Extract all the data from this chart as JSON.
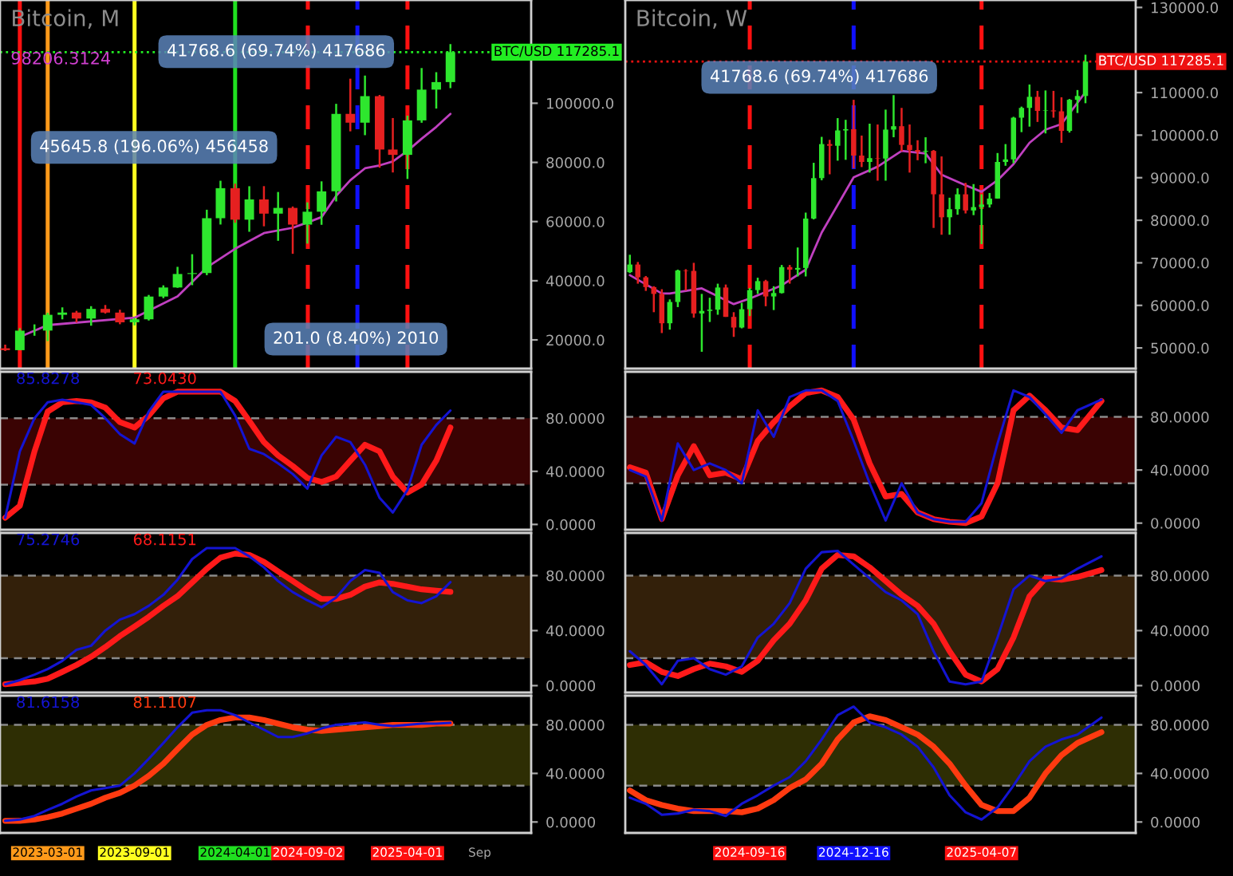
{
  "chart_data": [
    {
      "type": "candlestick",
      "title": "Bitcoin, M",
      "x": [
        "2022-12",
        "2023-01",
        "2023-02",
        "2023-03",
        "2023-04",
        "2023-05",
        "2023-06",
        "2023-07",
        "2023-08",
        "2023-09",
        "2023-10",
        "2023-11",
        "2023-12",
        "2024-01",
        "2024-02",
        "2024-03",
        "2024-04",
        "2024-05",
        "2024-06",
        "2024-07",
        "2024-08",
        "2024-09",
        "2024-10",
        "2024-11",
        "2024-12",
        "2025-01",
        "2025-02",
        "2025-03",
        "2025-04",
        "2025-05",
        "2025-06",
        "2025-07"
      ],
      "ohlc": [
        [
          17170,
          18400,
          16250,
          16530
        ],
        [
          16530,
          23950,
          16500,
          23125
        ],
        [
          23125,
          25250,
          21400,
          23150
        ],
        [
          23150,
          29200,
          19600,
          28480
        ],
        [
          28480,
          31000,
          26950,
          29250
        ],
        [
          29250,
          29820,
          25880,
          27220
        ],
        [
          27220,
          31400,
          24800,
          30480
        ],
        [
          30480,
          31800,
          28900,
          29230
        ],
        [
          29230,
          30200,
          25300,
          25940
        ],
        [
          25940,
          27450,
          24900,
          26960
        ],
        [
          26960,
          35200,
          26550,
          34650
        ],
        [
          34650,
          38450,
          34100,
          37720
        ],
        [
          37720,
          44700,
          37600,
          42280
        ],
        [
          42280,
          48970,
          38500,
          42580
        ],
        [
          42580,
          64000,
          41880,
          61130
        ],
        [
          61130,
          73800,
          59000,
          71290
        ],
        [
          71290,
          72800,
          59600,
          60640
        ],
        [
          60640,
          71950,
          56550,
          67490
        ],
        [
          67490,
          71980,
          58400,
          62680
        ],
        [
          62680,
          70000,
          53500,
          64620
        ],
        [
          64620,
          65100,
          49100,
          58970
        ],
        [
          58970,
          66500,
          52550,
          63330
        ],
        [
          63330,
          73600,
          58900,
          70220
        ],
        [
          70220,
          99800,
          66800,
          96410
        ],
        [
          96410,
          108300,
          90500,
          93430
        ],
        [
          93430,
          109350,
          89200,
          102400
        ],
        [
          102400,
          102800,
          78200,
          84350
        ],
        [
          84350,
          95000,
          76600,
          82550
        ],
        [
          82550,
          95800,
          74400,
          94200
        ],
        [
          94200,
          111900,
          93400,
          104600
        ],
        [
          104600,
          110500,
          98200,
          107150
        ],
        [
          107150,
          120000,
          105100,
          117285.1
        ]
      ],
      "colors": [
        "#e62020",
        "#2ee62e",
        "#2ee62e",
        "#2ee62e",
        "#2ee62e",
        "#e62020",
        "#2ee62e",
        "#e62020",
        "#e62020",
        "#2ee62e",
        "#2ee62e",
        "#2ee62e",
        "#2ee62e",
        "#2ee62e",
        "#2ee62e",
        "#2ee62e",
        "#e62020",
        "#2ee62e",
        "#e62020",
        "#2ee62e",
        "#e62020",
        "#2ee62e",
        "#2ee62e",
        "#2ee62e",
        "#e62020",
        "#2ee62e",
        "#e62020",
        "#e62020",
        "#2ee62e",
        "#2ee62e",
        "#2ee62e",
        "#2ee62e"
      ],
      "series": [
        {
          "type": "line",
          "color": "#c040c0",
          "x": [
            "2023-01",
            "2023-03",
            "2023-09",
            "2023-12",
            "2024-02",
            "2024-04",
            "2024-06",
            "2024-08",
            "2024-09",
            "2024-10",
            "2024-11",
            "2024-12",
            "2025-01",
            "2025-02",
            "2025-03",
            "2025-04",
            "2025-05",
            "2025-06",
            "2025-07"
          ],
          "values": [
            21000,
            25000,
            27500,
            34700,
            44500,
            50800,
            56100,
            57900,
            59700,
            61500,
            68700,
            74000,
            78000,
            79000,
            80300,
            83900,
            88000,
            92000,
            96400
          ]
        }
      ],
      "xlim": [
        "2022-11-20",
        "2025-12-19"
      ],
      "ylim": [
        10300,
        134900
      ],
      "yticks": [
        {
          "value": 20000,
          "label": "20000.0"
        },
        {
          "value": 40000,
          "label": "40000.0"
        },
        {
          "value": 60000,
          "label": "60000.0"
        },
        {
          "value": 80000,
          "label": "80000.0"
        },
        {
          "value": 100000,
          "label": "100000.0"
        }
      ],
      "tick_labels": "y",
      "ref_lines": [
        {
          "axis": "x",
          "value": "2023-01-01",
          "color": "#ff1010",
          "line_style": "solid"
        },
        {
          "axis": "x",
          "value": "2023-03-01",
          "color": "#ff9a1a",
          "line_style": "solid"
        },
        {
          "axis": "x",
          "value": "2023-09-01",
          "color": "#ffff20",
          "line_style": "solid"
        },
        {
          "axis": "x",
          "value": "2024-04-01",
          "color": "#20e020",
          "line_style": "solid"
        },
        {
          "axis": "x",
          "value": "2024-09-02",
          "color": "#ff1010",
          "line_style": "dashed"
        },
        {
          "axis": "x",
          "value": "2024-12-16",
          "color": "#1010ff",
          "line_style": "dashed"
        },
        {
          "axis": "x",
          "value": "2025-04-01",
          "color": "#ff1010",
          "line_style": "dashed"
        },
        {
          "axis": "y",
          "value": 117285.1,
          "label": "BTC/USD 117285.1",
          "color": "#22ee22",
          "line_style": "dotted"
        }
      ],
      "annotations": [
        "98206.3124",
        "45645.8 (196.06%) 456458",
        "41768.6 (69.74%) 417686",
        "201.0 (8.40%) 2010"
      ]
    },
    {
      "type": "candlestick",
      "title": "Bitcoin, W",
      "x": [
        "2024-06-03",
        "2024-06-10",
        "2024-06-17",
        "2024-06-24",
        "2024-07-01",
        "2024-07-08",
        "2024-07-15",
        "2024-07-22",
        "2024-07-29",
        "2024-08-05",
        "2024-08-12",
        "2024-08-19",
        "2024-08-26",
        "2024-09-02",
        "2024-09-09",
        "2024-09-16",
        "2024-09-23",
        "2024-09-30",
        "2024-10-07",
        "2024-10-14",
        "2024-10-21",
        "2024-10-28",
        "2024-11-04",
        "2024-11-11",
        "2024-11-18",
        "2024-11-25",
        "2024-12-02",
        "2024-12-09",
        "2024-12-16",
        "2024-12-23",
        "2024-12-30",
        "2025-01-06",
        "2025-01-13",
        "2025-01-20",
        "2025-01-27",
        "2025-02-03",
        "2025-02-10",
        "2025-02-17",
        "2025-02-24",
        "2025-03-03",
        "2025-03-10",
        "2025-03-17",
        "2025-03-24",
        "2025-03-31",
        "2025-04-07",
        "2025-04-14",
        "2025-04-21",
        "2025-04-28",
        "2025-05-05",
        "2025-05-12",
        "2025-05-19",
        "2025-05-26",
        "2025-06-02",
        "2025-06-09",
        "2025-06-16",
        "2025-06-23",
        "2025-06-30",
        "2025-07-07"
      ],
      "ohlc": [
        [
          67800,
          71900,
          67600,
          69600
        ],
        [
          69600,
          70200,
          65100,
          66600
        ],
        [
          66600,
          66900,
          63400,
          64300
        ],
        [
          64300,
          64500,
          58400,
          62700
        ],
        [
          62700,
          63800,
          53500,
          55800
        ],
        [
          55800,
          61400,
          54300,
          60800
        ],
        [
          60800,
          68400,
          59600,
          68200
        ],
        [
          68200,
          68500,
          63500,
          68100
        ],
        [
          68100,
          70000,
          57100,
          58100
        ],
        [
          58100,
          62700,
          49100,
          58700
        ],
        [
          58700,
          61800,
          56100,
          59000
        ],
        [
          59000,
          65100,
          57800,
          64200
        ],
        [
          64200,
          64900,
          57300,
          57300
        ],
        [
          57300,
          58400,
          52600,
          54800
        ],
        [
          54800,
          60600,
          54600,
          59100
        ],
        [
          59100,
          64100,
          57500,
          63600
        ],
        [
          63600,
          66500,
          62700,
          65700
        ],
        [
          65700,
          66000,
          59800,
          62100
        ],
        [
          62100,
          64500,
          58900,
          62900
        ],
        [
          62900,
          69500,
          62800,
          69000
        ],
        [
          69000,
          69500,
          65100,
          68400
        ],
        [
          68400,
          73600,
          66800,
          68800
        ],
        [
          68800,
          81800,
          66800,
          80400
        ],
        [
          80400,
          93500,
          80200,
          89900
        ],
        [
          89900,
          99600,
          89400,
          97900
        ],
        [
          97900,
          98900,
          90800,
          97500
        ],
        [
          97500,
          104000,
          94000,
          101100
        ],
        [
          101100,
          103600,
          94200,
          101400
        ],
        [
          101400,
          108300,
          92200,
          95200
        ],
        [
          95200,
          99900,
          92500,
          93700
        ],
        [
          93700,
          102700,
          91200,
          94600
        ],
        [
          94600,
          102500,
          89300,
          94500
        ],
        [
          94500,
          106000,
          89300,
          101300
        ],
        [
          101300,
          109400,
          99500,
          102100
        ],
        [
          102100,
          106400,
          96200,
          97700
        ],
        [
          97700,
          102500,
          91200,
          96500
        ],
        [
          96500,
          98800,
          94100,
          96100
        ],
        [
          96100,
          99500,
          93400,
          96300
        ],
        [
          96300,
          96500,
          78200,
          86100
        ],
        [
          86100,
          95000,
          76600,
          80700
        ],
        [
          80700,
          85300,
          76600,
          82600
        ],
        [
          82600,
          87500,
          81300,
          86100
        ],
        [
          86100,
          88800,
          81600,
          82300
        ],
        [
          82300,
          88500,
          81200,
          83100
        ],
        [
          83100,
          86100,
          74400,
          83700
        ],
        [
          83700,
          86400,
          83000,
          85100
        ],
        [
          85100,
          95800,
          85100,
          93700
        ],
        [
          93700,
          97900,
          92800,
          94300
        ],
        [
          94300,
          104300,
          93400,
          104100
        ],
        [
          104100,
          106700,
          100700,
          106400
        ],
        [
          106400,
          111900,
          102000,
          109000
        ],
        [
          109000,
          110400,
          103100,
          105700
        ],
        [
          105700,
          110500,
          100400,
          105800
        ],
        [
          105800,
          110400,
          104100,
          105600
        ],
        [
          105600,
          108900,
          98200,
          101000
        ],
        [
          101000,
          108500,
          100600,
          108300
        ],
        [
          108300,
          110600,
          105200,
          109200
        ],
        [
          109200,
          118900,
          107500,
          117285.1
        ]
      ],
      "colors": [
        "#2ee62e",
        "#e62020",
        "#e62020",
        "#e62020",
        "#e62020",
        "#2ee62e",
        "#2ee62e",
        "#e62020",
        "#e62020",
        "#2ee62e",
        "#2ee62e",
        "#2ee62e",
        "#e62020",
        "#e62020",
        "#2ee62e",
        "#2ee62e",
        "#2ee62e",
        "#e62020",
        "#2ee62e",
        "#2ee62e",
        "#e62020",
        "#2ee62e",
        "#2ee62e",
        "#2ee62e",
        "#2ee62e",
        "#e62020",
        "#2ee62e",
        "#2ee62e",
        "#e62020",
        "#e62020",
        "#2ee62e",
        "#e62020",
        "#2ee62e",
        "#2ee62e",
        "#e62020",
        "#e62020",
        "#e62020",
        "#2ee62e",
        "#e62020",
        "#e62020",
        "#2ee62e",
        "#2ee62e",
        "#e62020",
        "#2ee62e",
        "#2ee62e",
        "#2ee62e",
        "#2ee62e",
        "#2ee62e",
        "#2ee62e",
        "#2ee62e",
        "#2ee62e",
        "#e62020",
        "#2ee62e",
        "#e62020",
        "#e62020",
        "#2ee62e",
        "#2ee62e",
        "#2ee62e"
      ],
      "series": [
        {
          "type": "line",
          "color": "#c040c0",
          "x": [
            "2024-06-03",
            "2024-07-01",
            "2024-07-08",
            "2024-08-05",
            "2024-09-02",
            "2024-09-16",
            "2024-10-14",
            "2024-11-04",
            "2024-11-18",
            "2024-12-16",
            "2025-01-06",
            "2025-01-27",
            "2025-02-17",
            "2025-03-03",
            "2025-03-24",
            "2025-04-07",
            "2025-04-21",
            "2025-05-05",
            "2025-05-19",
            "2025-06-02",
            "2025-06-16",
            "2025-07-07"
          ],
          "values": [
            67100,
            62800,
            62800,
            64000,
            60300,
            61600,
            64700,
            68400,
            77100,
            90100,
            92600,
            96300,
            95700,
            90700,
            88200,
            86700,
            89400,
            93200,
            98200,
            101300,
            102600,
            110100
          ]
        }
      ],
      "xlim": [
        "2024-05-30",
        "2025-08-20"
      ],
      "ylim": [
        45150,
        131750
      ],
      "yticks": [
        {
          "value": 50000,
          "label": "50000.0"
        },
        {
          "value": 60000,
          "label": "60000.0"
        },
        {
          "value": 70000,
          "label": "70000.0"
        },
        {
          "value": 80000,
          "label": "80000.0"
        },
        {
          "value": 90000,
          "label": "90000.0"
        },
        {
          "value": 100000,
          "label": "100000.0"
        },
        {
          "value": 110000,
          "label": "110000.0"
        },
        {
          "value": 130000,
          "label": "130000.0"
        }
      ],
      "tick_labels": "y",
      "ref_lines": [
        {
          "axis": "x",
          "value": "2024-09-16",
          "color": "#ff1010",
          "line_style": "dashed"
        },
        {
          "axis": "x",
          "value": "2024-12-16",
          "color": "#1010ff",
          "line_style": "dashed"
        },
        {
          "axis": "x",
          "value": "2025-04-07",
          "color": "#ff1010",
          "line_style": "dashed"
        },
        {
          "axis": "y",
          "value": 117285.1,
          "label": "BTC/USD 117285.1",
          "color": "#ee1111",
          "line_style": "dotted"
        }
      ],
      "annotations": [
        "41768.6 (69.74%) 417686"
      ]
    },
    {
      "type": "line",
      "x": [
        "2022-12",
        "2023-01",
        "2023-02",
        "2023-03",
        "2023-04",
        "2023-05",
        "2023-06",
        "2023-07",
        "2023-08",
        "2023-09",
        "2023-10",
        "2023-11",
        "2023-12",
        "2024-01",
        "2024-02",
        "2024-03",
        "2024-04",
        "2024-05",
        "2024-06",
        "2024-07",
        "2024-08",
        "2024-09",
        "2024-10",
        "2024-11",
        "2024-12",
        "2025-01",
        "2025-02",
        "2025-03",
        "2025-04",
        "2025-05",
        "2025-06",
        "2025-07"
      ],
      "series": [
        {
          "name": "85.8278",
          "color": "#1414d2",
          "values": [
            5,
            55,
            80,
            92,
            94,
            92,
            90,
            80,
            68,
            61,
            85,
            100,
            100,
            100,
            100,
            100,
            82,
            57,
            53,
            46,
            38,
            27,
            52,
            66,
            62,
            45,
            20,
            9,
            26,
            60,
            75,
            85.8278
          ]
        },
        {
          "name": "73.0430",
          "color": "#ff1a1a",
          "values": [
            5,
            14,
            55,
            85,
            92,
            93,
            92,
            88,
            77,
            73,
            82,
            95,
            100,
            100,
            100,
            100,
            93,
            78,
            62,
            52,
            44,
            35,
            32,
            36,
            48,
            60,
            55,
            36,
            24,
            30,
            48,
            73.043
          ]
        }
      ],
      "xlim": [
        "2022-11-20",
        "2025-12-19"
      ],
      "ylim": [
        -4,
        115
      ],
      "yticks": [
        {
          "value": 0,
          "label": "0.0000"
        },
        {
          "value": 40,
          "label": "40.0000"
        },
        {
          "value": 80,
          "label": "80.0000"
        }
      ],
      "tick_labels": "y",
      "bands": [
        {
          "axis": "y",
          "from": 30,
          "to": 80,
          "color": "#3a0303"
        }
      ]
    },
    {
      "type": "line",
      "x": [
        "2024-06-03",
        "2024-06-17",
        "2024-07-01",
        "2024-07-15",
        "2024-07-29",
        "2024-08-12",
        "2024-08-26",
        "2024-09-09",
        "2024-09-23",
        "2024-10-07",
        "2024-10-21",
        "2024-11-04",
        "2024-11-18",
        "2024-12-02",
        "2024-12-16",
        "2024-12-30",
        "2025-01-13",
        "2025-01-27",
        "2025-02-10",
        "2025-02-24",
        "2025-03-10",
        "2025-03-24",
        "2025-04-07",
        "2025-04-21",
        "2025-05-05",
        "2025-05-19",
        "2025-06-02",
        "2025-06-16",
        "2025-06-30",
        "2025-07-21"
      ],
      "series": [
        {
          "color": "#1414d2",
          "values": [
            40,
            35,
            2,
            60,
            40,
            45,
            40,
            30,
            85,
            65,
            95,
            100,
            100,
            92,
            62,
            30,
            2,
            30,
            8,
            3,
            1,
            1,
            15,
            60,
            100,
            95,
            82,
            68,
            85,
            93
          ]
        },
        {
          "color": "#ff1a1a",
          "values": [
            42,
            38,
            3,
            36,
            58,
            36,
            38,
            33,
            62,
            76,
            88,
            98,
            100,
            95,
            78,
            45,
            20,
            22,
            8,
            3,
            1,
            0,
            5,
            30,
            85,
            96,
            85,
            72,
            70,
            92
          ]
        }
      ],
      "xlim": [
        "2024-05-30",
        "2025-08-20"
      ],
      "ylim": [
        -5,
        114
      ],
      "yticks": [
        {
          "value": 0,
          "label": "0.0000"
        },
        {
          "value": 40,
          "label": "40.0000"
        },
        {
          "value": 80,
          "label": "80.0000"
        }
      ],
      "tick_labels": "y",
      "bands": [
        {
          "axis": "y",
          "from": 30,
          "to": 80,
          "color": "#3a0303"
        }
      ]
    },
    {
      "type": "line",
      "x": [
        "2022-12",
        "2023-01",
        "2023-02",
        "2023-03",
        "2023-04",
        "2023-05",
        "2023-06",
        "2023-07",
        "2023-08",
        "2023-09",
        "2023-10",
        "2023-11",
        "2023-12",
        "2024-01",
        "2024-02",
        "2024-03",
        "2024-04",
        "2024-05",
        "2024-06",
        "2024-07",
        "2024-08",
        "2024-09",
        "2024-10",
        "2024-11",
        "2024-12",
        "2025-01",
        "2025-02",
        "2025-03",
        "2025-04",
        "2025-05",
        "2025-06",
        "2025-07"
      ],
      "series": [
        {
          "name": "75.2746",
          "color": "#1414d2",
          "values": [
            1,
            4,
            8,
            12,
            18,
            26,
            29,
            40,
            48,
            52,
            58,
            66,
            77,
            92,
            100,
            100,
            100,
            94,
            86,
            76,
            68,
            62,
            57,
            64,
            76,
            84,
            82,
            68,
            62,
            60,
            65,
            75.2746
          ]
        },
        {
          "name": "68.1151",
          "color": "#ff1a1a",
          "values": [
            1,
            2,
            3,
            5,
            10,
            15,
            21,
            28,
            36,
            43,
            50,
            58,
            65,
            75,
            85,
            93,
            96,
            95,
            90,
            83,
            76,
            69,
            63,
            63,
            66,
            72,
            75,
            74,
            72,
            70,
            69,
            68.1151
          ]
        }
      ],
      "xlim": [
        "2022-11-20",
        "2025-12-19"
      ],
      "ylim": [
        -5,
        111
      ],
      "yticks": [
        {
          "value": 0,
          "label": "0.0000"
        },
        {
          "value": 40,
          "label": "40.0000"
        },
        {
          "value": 80,
          "label": "80.0000"
        }
      ],
      "tick_labels": "y",
      "bands": [
        {
          "axis": "y",
          "from": 20,
          "to": 80,
          "color": "#33200a"
        }
      ]
    },
    {
      "type": "line",
      "x": [
        "2024-06-03",
        "2024-06-17",
        "2024-07-01",
        "2024-07-15",
        "2024-07-29",
        "2024-08-12",
        "2024-08-26",
        "2024-09-09",
        "2024-09-23",
        "2024-10-07",
        "2024-10-21",
        "2024-11-04",
        "2024-11-18",
        "2024-12-02",
        "2024-12-16",
        "2024-12-30",
        "2025-01-13",
        "2025-01-27",
        "2025-02-10",
        "2025-02-24",
        "2025-03-10",
        "2025-03-24",
        "2025-04-07",
        "2025-04-21",
        "2025-05-05",
        "2025-05-19",
        "2025-06-02",
        "2025-06-16",
        "2025-06-30",
        "2025-07-21"
      ],
      "series": [
        {
          "color": "#1414d2",
          "values": [
            25,
            15,
            1,
            18,
            20,
            12,
            8,
            14,
            35,
            45,
            60,
            85,
            97,
            98,
            88,
            78,
            68,
            62,
            52,
            25,
            3,
            1,
            3,
            35,
            70,
            80,
            76,
            78,
            85,
            94
          ]
        },
        {
          "color": "#ff1a1a",
          "values": [
            15,
            17,
            10,
            7,
            12,
            16,
            14,
            10,
            18,
            33,
            45,
            62,
            85,
            95,
            94,
            86,
            76,
            66,
            58,
            45,
            25,
            8,
            3,
            12,
            35,
            65,
            78,
            77,
            79,
            84
          ]
        }
      ],
      "xlim": [
        "2024-05-30",
        "2025-08-20"
      ],
      "ylim": [
        -5,
        111
      ],
      "yticks": [
        {
          "value": 0,
          "label": "0.0000"
        },
        {
          "value": 40,
          "label": "40.0000"
        },
        {
          "value": 80,
          "label": "80.0000"
        }
      ],
      "tick_labels": "y",
      "bands": [
        {
          "axis": "y",
          "from": 20,
          "to": 80,
          "color": "#33200a"
        }
      ]
    },
    {
      "type": "line",
      "x": [
        "2022-12",
        "2023-01",
        "2023-02",
        "2023-03",
        "2023-04",
        "2023-05",
        "2023-06",
        "2023-07",
        "2023-08",
        "2023-09",
        "2023-10",
        "2023-11",
        "2023-12",
        "2024-01",
        "2024-02",
        "2024-03",
        "2024-04",
        "2024-05",
        "2024-06",
        "2024-07",
        "2024-08",
        "2024-09",
        "2024-10",
        "2024-11",
        "2024-12",
        "2025-01",
        "2025-02",
        "2025-03",
        "2025-04",
        "2025-05",
        "2025-06",
        "2025-07"
      ],
      "series": [
        {
          "name": "81.6158",
          "color": "#1414d2",
          "values": [
            1,
            2,
            5,
            10,
            15,
            21,
            26,
            28,
            30,
            40,
            52,
            65,
            78,
            90,
            92,
            92,
            88,
            82,
            76,
            70,
            70,
            73,
            77,
            80,
            81,
            82,
            80,
            79,
            80,
            81,
            81,
            81.6158
          ]
        },
        {
          "name": "81.1107",
          "color": "#ff3a10",
          "values": [
            1,
            1,
            2,
            4,
            7,
            11,
            15,
            20,
            24,
            30,
            38,
            48,
            60,
            72,
            80,
            84,
            86,
            86,
            84,
            81,
            78,
            76,
            75,
            76,
            77,
            78,
            79,
            80,
            80,
            80,
            81,
            81.1107
          ]
        }
      ],
      "xlim": [
        "2022-11-20",
        "2025-12-19"
      ],
      "ylim": [
        -9,
        104
      ],
      "yticks": [
        {
          "value": 0,
          "label": "0.0000"
        },
        {
          "value": 40,
          "label": "40.0000"
        },
        {
          "value": 80,
          "label": "80.0000"
        }
      ],
      "xticks": [
        {
          "value": "2023-03-01",
          "label": "2023-03-01"
        },
        {
          "value": "2023-09-01",
          "label": "2023-09-01"
        },
        {
          "value": "2024-04-01",
          "label": "2024-04-01"
        },
        {
          "value": "2024-09-02",
          "label": "2024-09-02"
        },
        {
          "value": "2025-04-01",
          "label": "2025-04-01"
        },
        {
          "value": "2025-09-01",
          "label": "Sep"
        }
      ],
      "bands": [
        {
          "axis": "y",
          "from": 30,
          "to": 80,
          "color": "#2e2e04"
        }
      ]
    },
    {
      "type": "line",
      "x": [
        "2024-06-03",
        "2024-06-17",
        "2024-07-01",
        "2024-07-15",
        "2024-07-29",
        "2024-08-12",
        "2024-08-26",
        "2024-09-09",
        "2024-09-23",
        "2024-10-07",
        "2024-10-21",
        "2024-11-04",
        "2024-11-18",
        "2024-12-02",
        "2024-12-16",
        "2024-12-30",
        "2025-01-13",
        "2025-01-27",
        "2025-02-10",
        "2025-02-24",
        "2025-03-10",
        "2025-03-24",
        "2025-04-07",
        "2025-04-21",
        "2025-05-05",
        "2025-05-19",
        "2025-06-02",
        "2025-06-16",
        "2025-06-30",
        "2025-07-21"
      ],
      "series": [
        {
          "color": "#1414d2",
          "values": [
            20,
            15,
            6,
            7,
            10,
            9,
            5,
            15,
            22,
            30,
            37,
            50,
            68,
            88,
            95,
            82,
            78,
            72,
            62,
            45,
            22,
            8,
            2,
            12,
            30,
            50,
            62,
            68,
            72,
            86
          ]
        },
        {
          "color": "#ff3a10",
          "values": [
            26,
            18,
            14,
            11,
            9,
            9,
            9,
            8,
            11,
            18,
            28,
            35,
            48,
            68,
            82,
            87,
            84,
            78,
            72,
            62,
            48,
            30,
            14,
            9,
            9,
            20,
            40,
            55,
            65,
            74
          ]
        }
      ],
      "xlim": [
        "2024-05-30",
        "2025-08-20"
      ],
      "ylim": [
        -9,
        104
      ],
      "yticks": [
        {
          "value": 0,
          "label": "0.0000"
        },
        {
          "value": 40,
          "label": "40.0000"
        },
        {
          "value": 80,
          "label": "80.0000"
        }
      ],
      "xticks": [
        {
          "value": "2024-09-16",
          "label": "2024-09-16"
        },
        {
          "value": "2024-12-16",
          "label": "2024-12-16"
        },
        {
          "value": "2025-04-07",
          "label": "2025-04-07"
        }
      ],
      "bands": [
        {
          "axis": "y",
          "from": 30,
          "to": 80,
          "color": "#2e2e04"
        }
      ]
    }
  ]
}
